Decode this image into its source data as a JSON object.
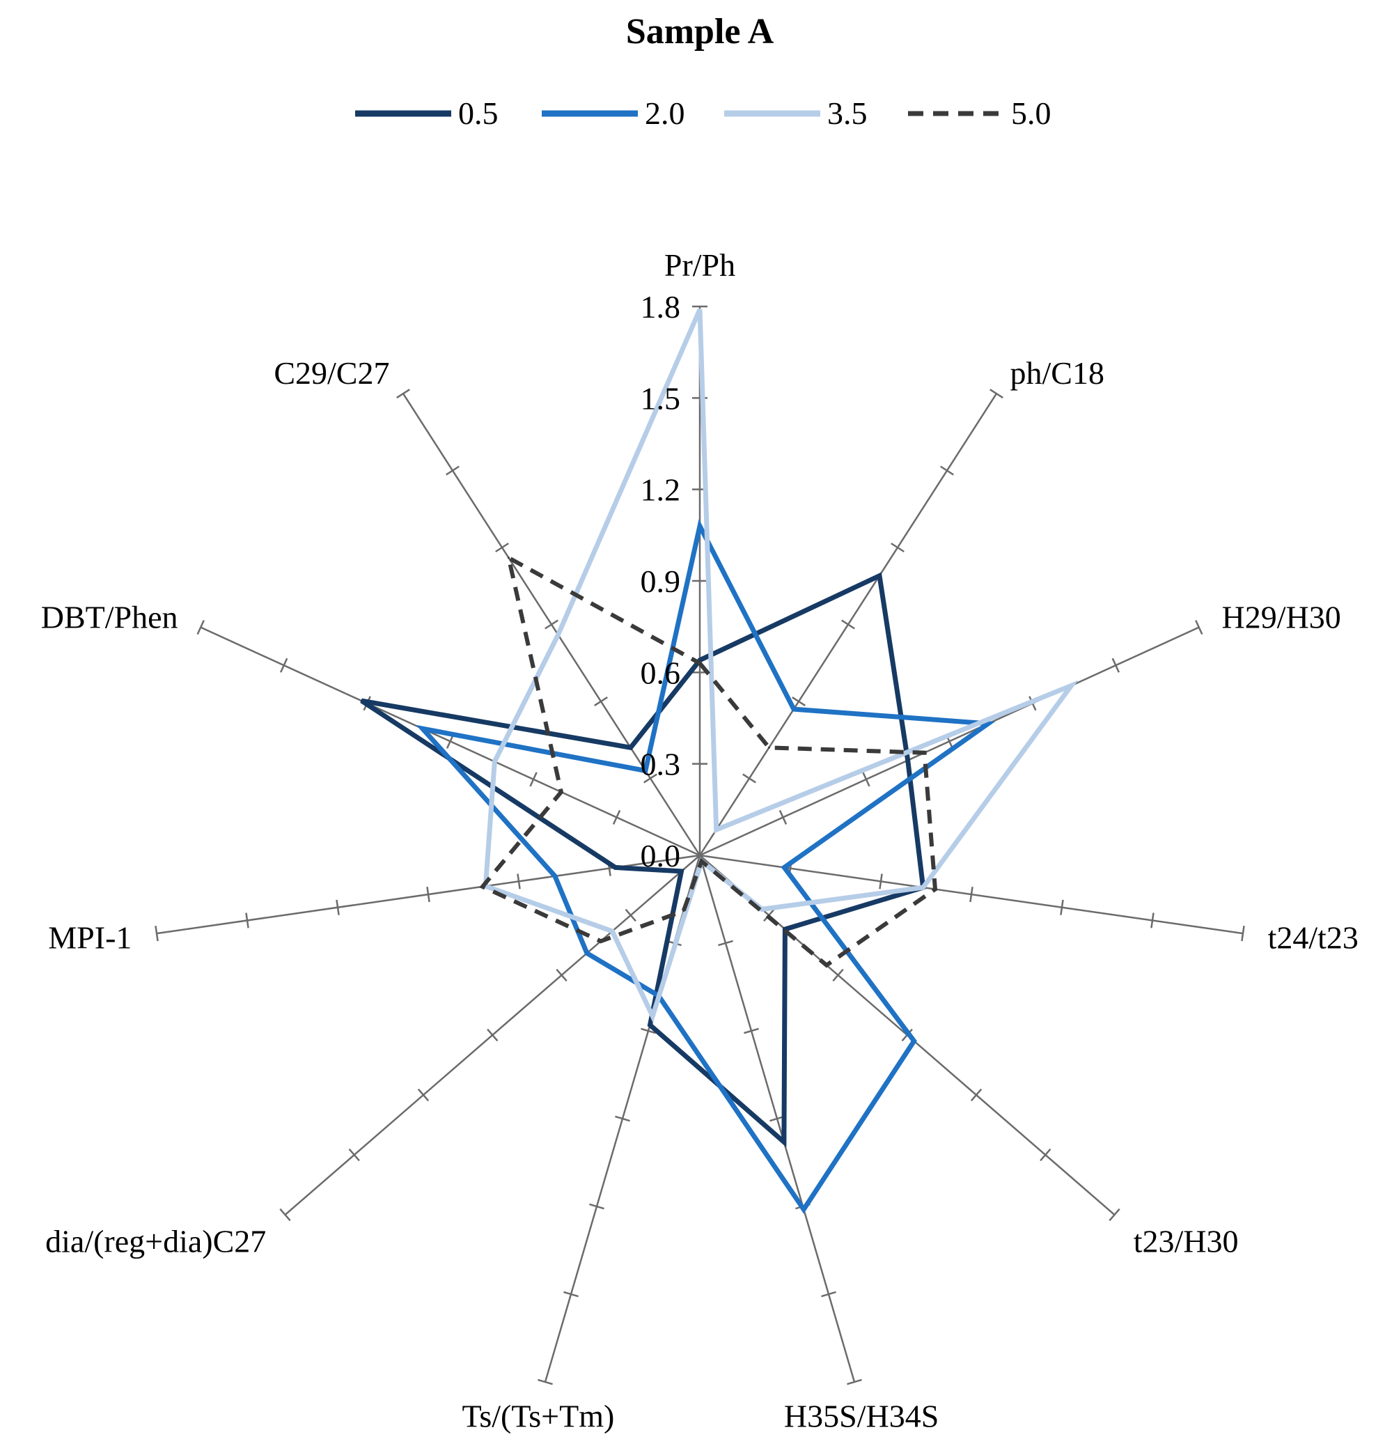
{
  "chart_data": {
    "type": "radar",
    "title": "Sample A",
    "legend_position": "top",
    "axes": [
      "Pr/Ph",
      "ph/C18",
      "H29/H30",
      "t24/t23",
      "t23/H30",
      "H35S/H34S",
      "Ts/(Ts+Tm)",
      "dia/(reg+dia)C27",
      "MPI-1",
      "DBT/Phen",
      "C29/C27"
    ],
    "rlim": [
      0.0,
      1.8
    ],
    "tick_values": [
      0.0,
      0.3,
      0.6,
      0.9,
      1.2,
      1.5,
      1.8
    ],
    "tick_labels": [
      "0.0",
      "0.3",
      "0.6",
      "0.9",
      "1.2",
      "1.5",
      "1.8"
    ],
    "series": [
      {
        "name": "0.5",
        "color": "#163a64",
        "dash": false,
        "values": [
          0.64,
          1.09,
          0.75,
          0.74,
          0.37,
          0.98,
          0.58,
          0.08,
          0.28,
          1.22,
          0.42
        ]
      },
      {
        "name": "2.0",
        "color": "#1f72c4",
        "dash": false,
        "values": [
          1.08,
          0.57,
          1.04,
          0.28,
          0.93,
          1.21,
          0.48,
          0.49,
          0.48,
          1.0,
          0.33
        ]
      },
      {
        "name": "3.5",
        "color": "#b6cde8",
        "dash": false,
        "values": [
          1.79,
          0.1,
          1.34,
          0.74,
          0.27,
          0.02,
          0.55,
          0.38,
          0.71,
          0.74,
          0.86
        ]
      },
      {
        "name": "5.0",
        "color": "#3a3a3a",
        "dash": true,
        "values": [
          0.63,
          0.42,
          0.81,
          0.78,
          0.55,
          0.02,
          0.19,
          0.43,
          0.72,
          0.5,
          1.16
        ]
      }
    ]
  }
}
